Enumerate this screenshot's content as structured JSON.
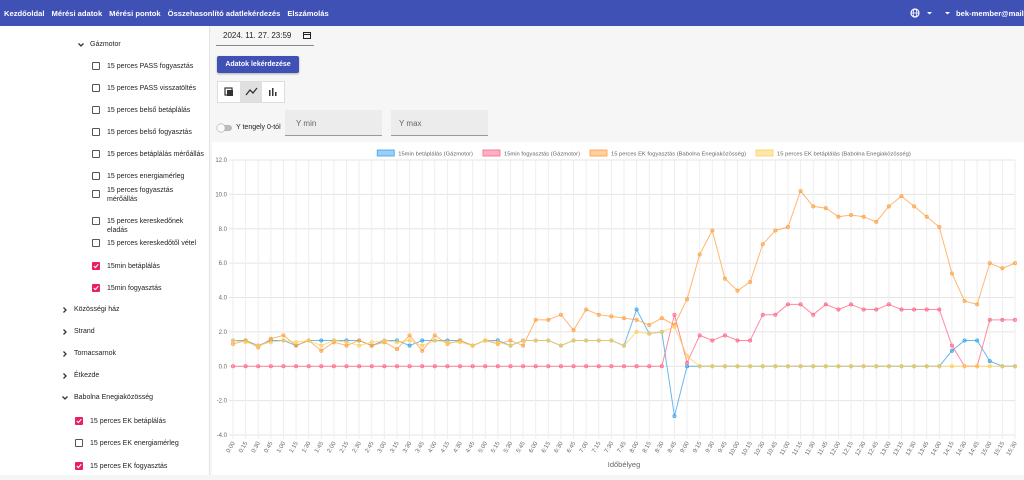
{
  "nav": {
    "items": [
      "Kezdőoldal",
      "Mérési adatok",
      "Mérési pontok",
      "Összehasonlító adatlekérdezés",
      "Elszámolás"
    ],
    "user": "bek-member@mailin"
  },
  "sidebar": {
    "tree": [
      {
        "label": "Gázmotor",
        "expanded": true,
        "children": [
          {
            "label": "15 perces PASS fogyasztás",
            "checked": false
          },
          {
            "label": "15 perces PASS visszatöltés",
            "checked": false
          },
          {
            "label": "15 perces belső betáplálás",
            "checked": false
          },
          {
            "label": "15 perces belső fogyasztás",
            "checked": false
          },
          {
            "label": "15 perces betáplálás mérőállás",
            "checked": false
          },
          {
            "label": "15 perces energiamérleg",
            "checked": false
          },
          {
            "label": "15 perces fogyasztás mérőállás",
            "checked": false
          },
          {
            "label": "15 perces kereskedőnek eladás",
            "checked": false
          },
          {
            "label": "15 perces kereskedőtől vétel",
            "checked": false
          },
          {
            "label": "15min betáplálás",
            "checked": true
          },
          {
            "label": "15min fogyasztás",
            "checked": true
          }
        ]
      },
      {
        "label": "Közösségi ház",
        "expanded": false
      },
      {
        "label": "Strand",
        "expanded": false
      },
      {
        "label": "Tornacsarnok",
        "expanded": false
      },
      {
        "label": "Étkezde",
        "expanded": false
      },
      {
        "label": "Babolna Enegiaközösség",
        "expanded": true,
        "children": [
          {
            "label": "15 perces EK betáplálás",
            "checked": true
          },
          {
            "label": "15 perces EK energiamérleg",
            "checked": false
          },
          {
            "label": "15 perces EK fogyasztás",
            "checked": true
          }
        ]
      }
    ]
  },
  "controls": {
    "date": "2024. 11. 27. 23:59",
    "button": "Adatok lekérdezése",
    "switch_label": "Y tengely 0-tól",
    "switch_on": false,
    "ymin_placeholder": "Y min",
    "ymax_placeholder": "Y max"
  },
  "chart_data": {
    "type": "line",
    "x_label": "Időbélyeg",
    "grid": true,
    "ylim": [
      -4,
      12
    ],
    "yticks": [
      {
        "value": -4,
        "label": "-4.0"
      },
      {
        "value": -2,
        "label": "-2.0"
      },
      {
        "value": 0,
        "label": "0.0"
      },
      {
        "value": 2,
        "label": "2.0"
      },
      {
        "value": 4,
        "label": "4.0"
      },
      {
        "value": 6,
        "label": "6.0"
      },
      {
        "value": 8,
        "label": "8.0"
      },
      {
        "value": 10,
        "label": "10.0"
      },
      {
        "value": 12,
        "label": "12.0"
      }
    ],
    "categories": [
      "0:00",
      "0:15",
      "0:30",
      "0:45",
      "1:00",
      "1:15",
      "1:30",
      "1:45",
      "2:00",
      "2:15",
      "2:30",
      "2:45",
      "3:00",
      "3:15",
      "3:30",
      "3:45",
      "4:00",
      "4:15",
      "4:30",
      "4:45",
      "5:00",
      "5:15",
      "5:30",
      "5:45",
      "6:00",
      "6:15",
      "6:30",
      "6:45",
      "7:00",
      "7:15",
      "7:30",
      "7:45",
      "8:00",
      "8:15",
      "8:30",
      "8:45",
      "9:00",
      "9:15",
      "9:30",
      "9:45",
      "10:00",
      "10:15",
      "10:30",
      "10:45",
      "11:00",
      "11:15",
      "11:30",
      "11:45",
      "12:00",
      "12:15",
      "12:30",
      "12:45",
      "13:00",
      "13:15",
      "13:30",
      "13:45",
      "14:00",
      "14:15",
      "14:30",
      "14:45",
      "15:00",
      "15:15",
      "15:30"
    ],
    "series": [
      {
        "name": "15min betáplálás (Gázmotor)",
        "color": "#36a2eb",
        "values": [
          1.5,
          1.5,
          1.2,
          1.5,
          1.5,
          1.2,
          1.5,
          1.5,
          1.5,
          1.5,
          1.5,
          1.2,
          1.5,
          1.5,
          1.2,
          1.5,
          1.5,
          1.5,
          1.5,
          1.2,
          1.5,
          1.5,
          1.2,
          1.5,
          1.5,
          1.5,
          1.2,
          1.5,
          1.5,
          1.5,
          1.5,
          1.2,
          3.3,
          1.9,
          2.0,
          -2.9,
          0,
          0,
          0,
          0,
          0,
          0,
          0,
          0,
          0,
          0,
          0,
          0,
          0,
          0,
          0,
          0,
          0,
          0,
          0,
          0,
          0,
          0.9,
          1.5,
          1.5,
          0.3,
          0,
          0
        ]
      },
      {
        "name": "15min fogyasztás (Gázmotor)",
        "color": "#ff6384",
        "values": [
          0,
          0,
          0,
          0,
          0,
          0,
          0,
          0,
          0,
          0,
          0,
          0,
          0,
          0,
          0,
          0,
          0,
          0,
          0,
          0,
          0,
          0,
          0,
          0,
          0,
          0,
          0,
          0,
          0,
          0,
          0,
          0,
          0,
          0,
          0,
          3.0,
          0.2,
          1.8,
          1.5,
          1.8,
          1.5,
          1.5,
          3.0,
          3.0,
          3.6,
          3.6,
          3.0,
          3.6,
          3.3,
          3.6,
          3.3,
          3.3,
          3.6,
          3.3,
          3.3,
          3.3,
          3.3,
          1.2,
          0,
          0,
          2.7,
          2.7,
          2.7
        ]
      },
      {
        "name": "15 perces EK fogyasztás (Babolna Enegiaközösség)",
        "color": "#ff9f40",
        "values": [
          1.3,
          1.5,
          1.1,
          1.6,
          1.8,
          1.2,
          1.5,
          0.9,
          1.4,
          1.2,
          1.5,
          1.2,
          1.4,
          1.0,
          1.8,
          0.9,
          1.8,
          1.3,
          1.5,
          1.2,
          1.5,
          1.3,
          1.5,
          1.2,
          2.7,
          2.7,
          3.0,
          2.1,
          3.3,
          3.0,
          2.9,
          2.8,
          2.7,
          2.4,
          2.8,
          2.4,
          3.9,
          6.5,
          7.9,
          5.1,
          4.4,
          4.9,
          7.1,
          7.9,
          8.1,
          10.2,
          9.3,
          9.2,
          8.7,
          8.8,
          8.7,
          8.4,
          9.3,
          9.9,
          9.3,
          8.7,
          8.1,
          5.4,
          3.8,
          3.6,
          6.0,
          5.7,
          6.0
        ]
      },
      {
        "name": "15 perces EK betáplálás (Babolna Enegiaközösség)",
        "color": "#ffcd56",
        "values": [
          1.5,
          1.4,
          1.2,
          1.4,
          1.5,
          1.4,
          1.5,
          1.2,
          1.5,
          1.4,
          1.2,
          1.4,
          1.5,
          1.4,
          1.5,
          1.2,
          1.5,
          1.4,
          1.4,
          1.2,
          1.5,
          1.4,
          1.2,
          1.5,
          1.5,
          1.5,
          1.2,
          1.5,
          1.5,
          1.5,
          1.5,
          1.2,
          2.0,
          1.9,
          2.0,
          2.3,
          0.6,
          0,
          0,
          0,
          0,
          0,
          0,
          0,
          0,
          0,
          0,
          0,
          0,
          0,
          0,
          0,
          0,
          0,
          0,
          0,
          0,
          0,
          0,
          0,
          0,
          0,
          0
        ]
      }
    ]
  }
}
